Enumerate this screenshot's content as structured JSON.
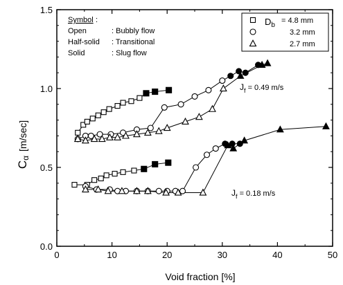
{
  "chart_data": {
    "type": "scatter",
    "title": "",
    "xlabel": "Void fraction [%]",
    "ylabel": "C",
    "ylabel_subscript": "α",
    "ylabel_unit": "[m/sec]",
    "xlim": [
      0,
      50
    ],
    "ylim": [
      0,
      1.5
    ],
    "x_ticks": [
      0,
      10,
      20,
      30,
      40,
      50
    ],
    "y_ticks": [
      0.0,
      0.5,
      1.0,
      1.5
    ],
    "y_tick_labels": [
      "0.0",
      "0.5",
      "1.0",
      "1.5"
    ],
    "grid": false,
    "symbol_key": {
      "heading": "Symbol",
      "rows": [
        {
          "term": "Open",
          "meaning": ": Bubbly flow"
        },
        {
          "term": "Half-solid",
          "meaning": ": Transitional"
        },
        {
          "term": "Solid",
          "meaning": ": Slug flow"
        }
      ]
    },
    "legend": {
      "position": "top-right",
      "param": "D",
      "param_sub": "b",
      "entries": [
        {
          "marker": "square",
          "label": "= 4.8 mm"
        },
        {
          "marker": "circle",
          "label": "3.2 mm"
        },
        {
          "marker": "triangle",
          "label": "2.7 mm"
        }
      ]
    },
    "annotations": [
      {
        "text": "J",
        "sub": "f",
        "rest": " = 0.49 m/s",
        "at": [
          31.5,
          0.89
        ]
      },
      {
        "text": "J",
        "sub": "f",
        "rest": " = 0.18 m/s",
        "at": [
          31.0,
          0.31
        ]
      }
    ],
    "series": [
      {
        "marker": "square",
        "group": "Jf=0.49",
        "x": [
          3.8,
          4.8,
          5.5,
          6.5,
          7.5,
          8.5,
          9.5,
          11,
          12,
          13.5,
          15,
          16.2,
          17.8,
          20.3
        ],
        "y": [
          0.72,
          0.77,
          0.79,
          0.81,
          0.83,
          0.85,
          0.87,
          0.89,
          0.91,
          0.92,
          0.94,
          0.97,
          0.98,
          0.99
        ],
        "state": [
          "open",
          "open",
          "open",
          "open",
          "open",
          "open",
          "open",
          "open",
          "open",
          "open",
          "open",
          "solid",
          "solid",
          "solid"
        ]
      },
      {
        "marker": "circle",
        "group": "Jf=0.49",
        "x": [
          3.8,
          5.2,
          6.2,
          7.8,
          9.8,
          12,
          14.5,
          17,
          19.5,
          22.5,
          25,
          27.5,
          30,
          31.5,
          33,
          34.2,
          36.5
        ],
        "y": [
          0.68,
          0.7,
          0.7,
          0.71,
          0.71,
          0.72,
          0.74,
          0.75,
          0.88,
          0.9,
          0.95,
          0.99,
          1.05,
          1.08,
          1.11,
          1.1,
          1.15
        ],
        "state": [
          "open",
          "open",
          "open",
          "open",
          "open",
          "open",
          "open",
          "open",
          "open",
          "open",
          "open",
          "open",
          "open",
          "solid",
          "solid",
          "solid",
          "solid"
        ]
      },
      {
        "marker": "triangle",
        "group": "Jf=0.49",
        "x": [
          3.8,
          5.2,
          6.8,
          8.2,
          9.6,
          11,
          12.5,
          14.5,
          16.5,
          18.5,
          20,
          23.3,
          25.8,
          28.2,
          30.2,
          33.3,
          37.2,
          38.2
        ],
        "y": [
          0.68,
          0.67,
          0.68,
          0.68,
          0.69,
          0.69,
          0.7,
          0.71,
          0.72,
          0.73,
          0.75,
          0.79,
          0.82,
          0.87,
          1.0,
          1.08,
          1.15,
          1.16
        ],
        "state": [
          "open",
          "open",
          "open",
          "open",
          "open",
          "open",
          "open",
          "open",
          "open",
          "open",
          "open",
          "open",
          "open",
          "open",
          "open",
          "solid",
          "solid",
          "solid"
        ]
      },
      {
        "marker": "square",
        "group": "Jf=0.18",
        "x": [
          3.2,
          5.5,
          6.8,
          8,
          9,
          10.5,
          12,
          14,
          15.8,
          17.8,
          20.2
        ],
        "y": [
          0.39,
          0.39,
          0.42,
          0.43,
          0.45,
          0.46,
          0.47,
          0.48,
          0.49,
          0.52,
          0.53
        ],
        "state": [
          "open",
          "open",
          "open",
          "open",
          "open",
          "open",
          "open",
          "open",
          "solid",
          "solid",
          "solid"
        ]
      },
      {
        "marker": "circle",
        "group": "Jf=0.18",
        "x": [
          5.2,
          7.2,
          9.6,
          11,
          12.5,
          14.5,
          16.5,
          18.5,
          20,
          21.5,
          22.8,
          25.2,
          27.2,
          28.8,
          30.5,
          31.8,
          33.2
        ],
        "y": [
          0.38,
          0.36,
          0.36,
          0.35,
          0.35,
          0.35,
          0.35,
          0.35,
          0.35,
          0.35,
          0.35,
          0.5,
          0.58,
          0.62,
          0.65,
          0.65,
          0.65
        ],
        "state": [
          "open",
          "open",
          "open",
          "open",
          "open",
          "open",
          "open",
          "open",
          "open",
          "open",
          "open",
          "open",
          "open",
          "open",
          "solid",
          "solid",
          "solid"
        ]
      },
      {
        "marker": "triangle",
        "group": "Jf=0.18",
        "x": [
          5.2,
          7.5,
          9.3,
          11.8,
          14.5,
          16.5,
          19.8,
          22,
          26.5,
          31,
          32,
          34,
          40.5,
          48.8
        ],
        "y": [
          0.36,
          0.36,
          0.35,
          0.35,
          0.35,
          0.35,
          0.34,
          0.34,
          0.34,
          0.64,
          0.62,
          0.67,
          0.74,
          0.76
        ],
        "state": [
          "open",
          "open",
          "open",
          "open",
          "open",
          "open",
          "open",
          "open",
          "open",
          "solid",
          "solid",
          "solid",
          "solid",
          "solid"
        ]
      }
    ]
  }
}
